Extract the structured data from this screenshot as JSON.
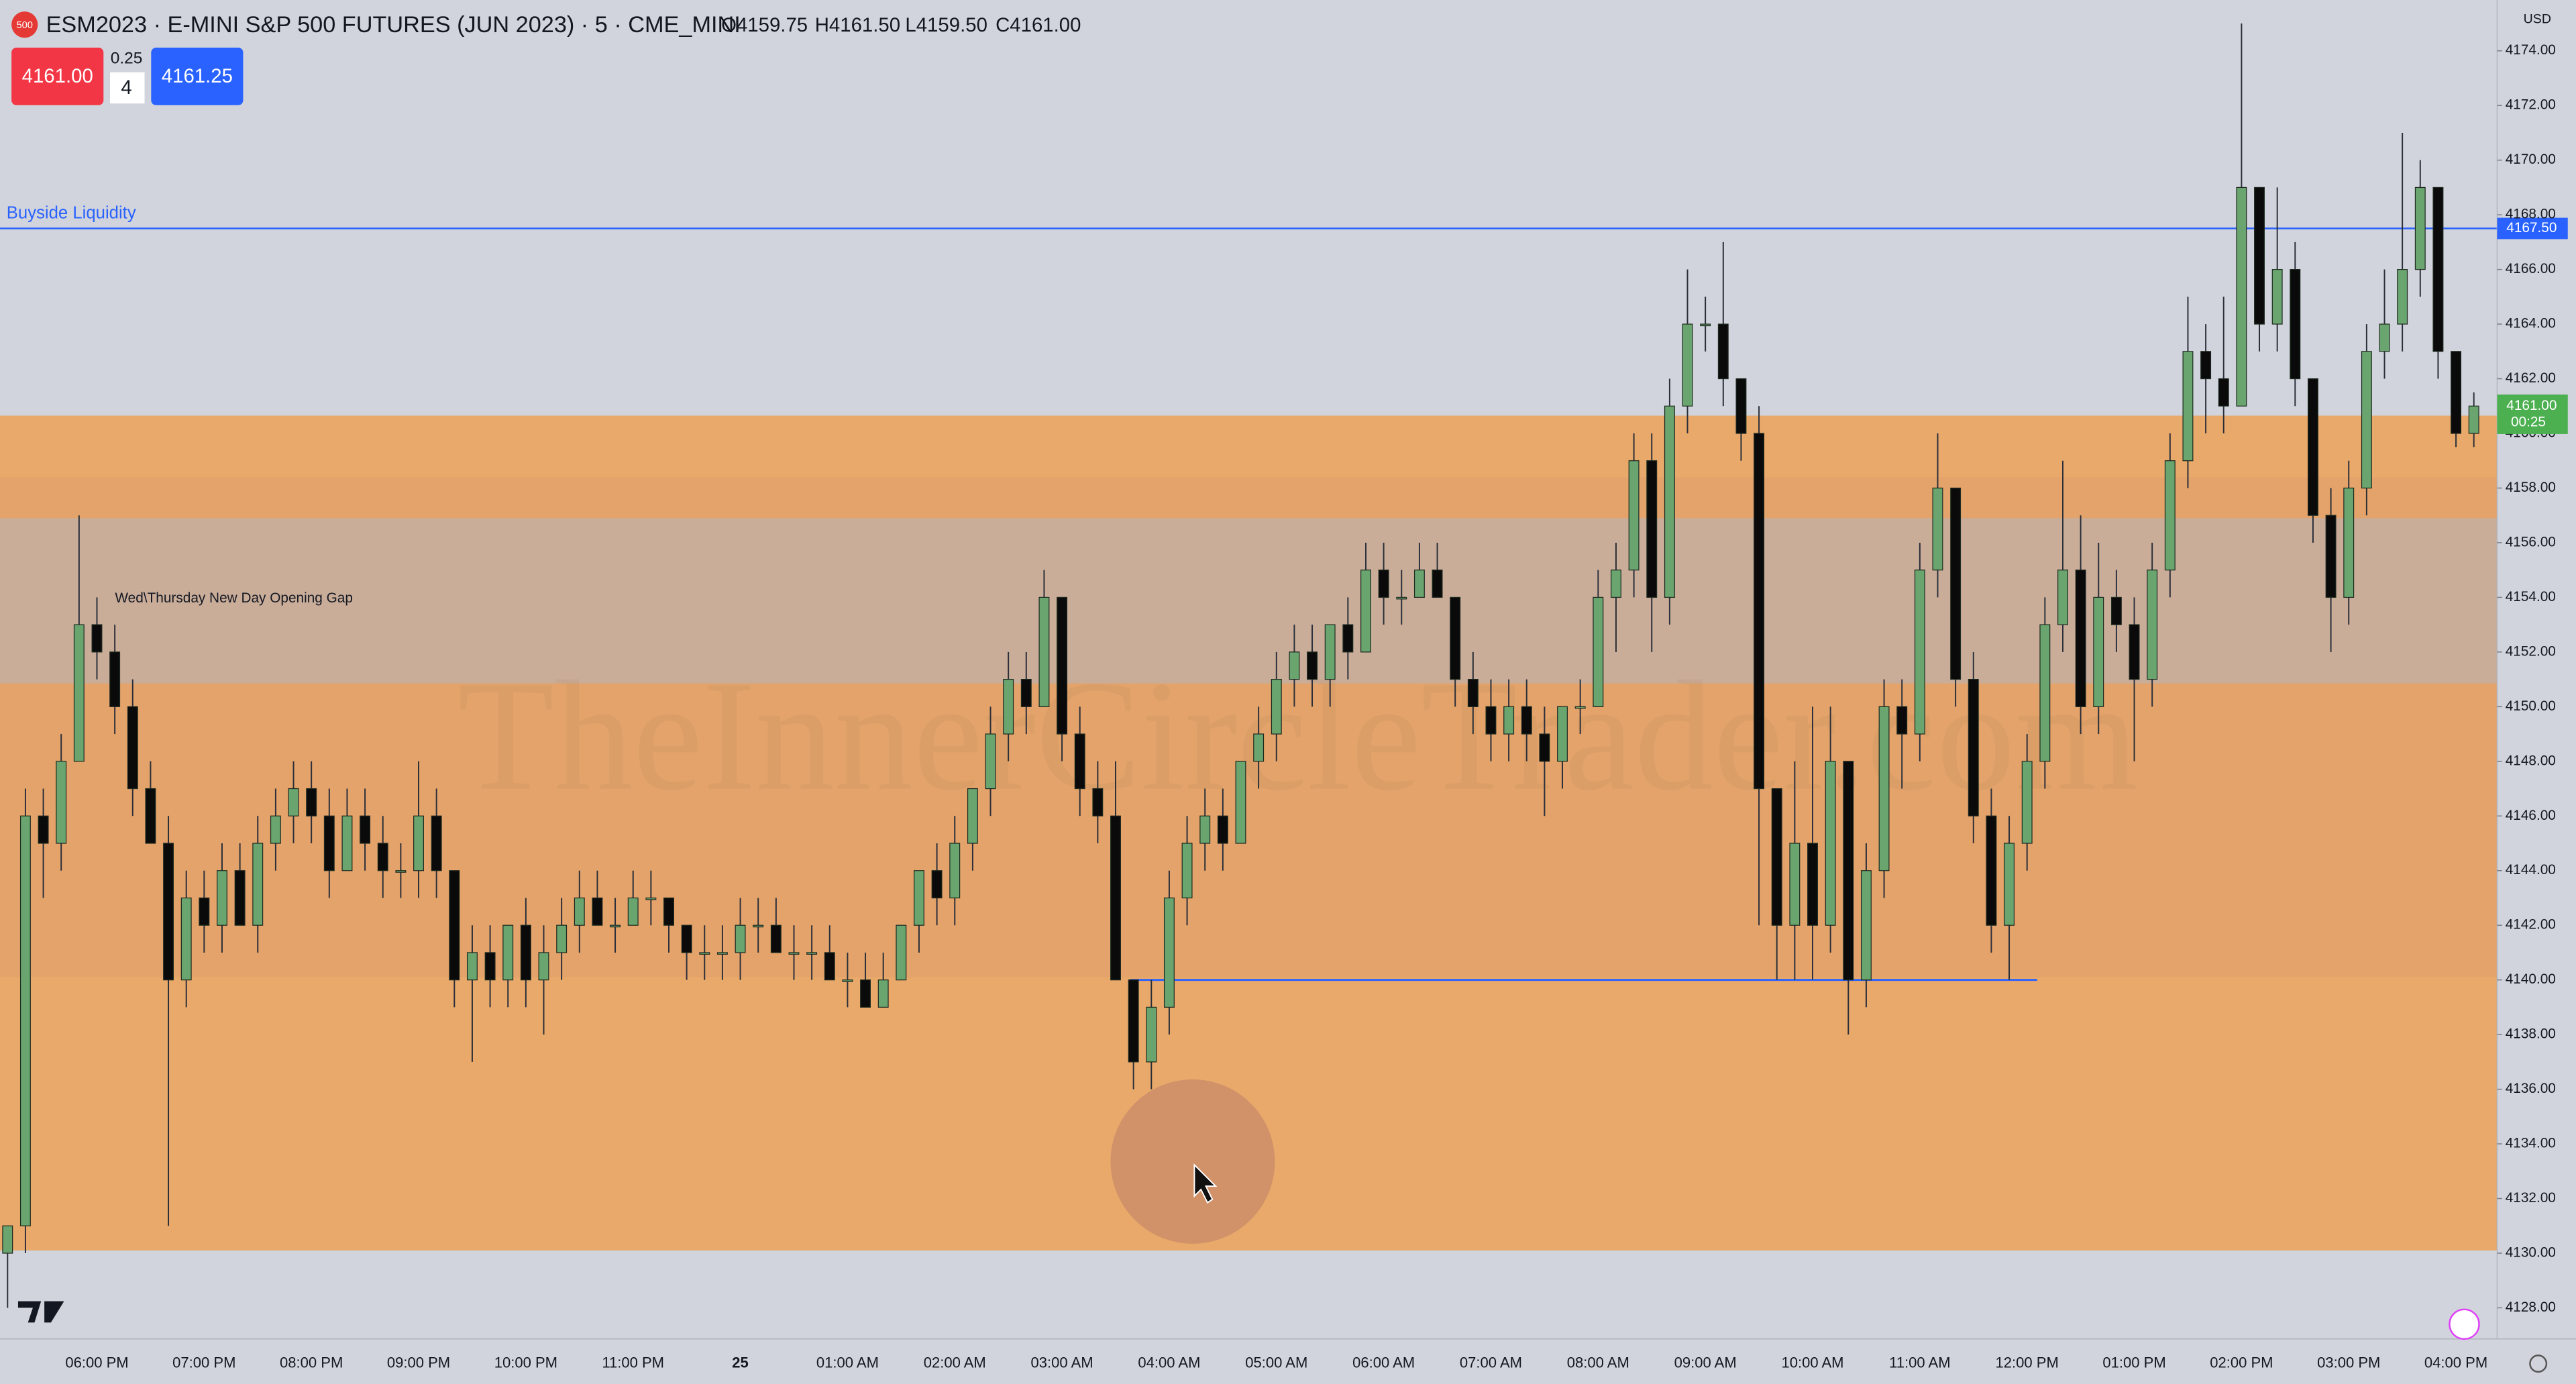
{
  "header": {
    "icon": "500",
    "symbol": "ESM2023 · E-MINI S&P 500 FUTURES (JUN 2023) · 5 · CME_MINI",
    "open": "O4159.75",
    "high": "H4161.50",
    "low": "L4159.50",
    "close": "C4161.00",
    "sell": "4161.00",
    "tick": "0.25",
    "qty": "4",
    "buy": "4161.25",
    "currency": "USD"
  },
  "chart_data": {
    "type": "candlestick",
    "watermark": "TheInnerCircleTrader.com",
    "up_color": "#6aa56f",
    "down_color": "#0a0a0a",
    "ylim": [
      4126.86,
      4175.86
    ],
    "yticks": [
      {
        "value": 4128,
        "label": "4128.00"
      },
      {
        "value": 4130,
        "label": "4130.00"
      },
      {
        "value": 4132,
        "label": "4132.00"
      },
      {
        "value": 4134,
        "label": "4134.00"
      },
      {
        "value": 4136,
        "label": "4136.00"
      },
      {
        "value": 4138,
        "label": "4138.00"
      },
      {
        "value": 4140,
        "label": "4140.00"
      },
      {
        "value": 4142,
        "label": "4142.00"
      },
      {
        "value": 4144,
        "label": "4144.00"
      },
      {
        "value": 4146,
        "label": "4146.00"
      },
      {
        "value": 4148,
        "label": "4148.00"
      },
      {
        "value": 4150,
        "label": "4150.00"
      },
      {
        "value": 4152,
        "label": "4152.00"
      },
      {
        "value": 4154,
        "label": "4154.00"
      },
      {
        "value": 4156,
        "label": "4156.00"
      },
      {
        "value": 4158,
        "label": "4158.00"
      },
      {
        "value": 4160,
        "label": "4160.00"
      },
      {
        "value": 4162,
        "label": "4162.00"
      },
      {
        "value": 4164,
        "label": "4164.00"
      },
      {
        "value": 4166,
        "label": "4166.00"
      },
      {
        "value": 4168,
        "label": "4168.00"
      },
      {
        "value": 4170,
        "label": "4170.00"
      },
      {
        "value": 4172,
        "label": "4172.00"
      },
      {
        "value": 4174,
        "label": "4174.00"
      }
    ],
    "x_labels": [
      "06:00 PM",
      "07:00 PM",
      "08:00 PM",
      "09:00 PM",
      "10:00 PM",
      "11:00 PM",
      "25",
      "01:00 AM",
      "02:00 AM",
      "03:00 AM",
      "04:00 AM",
      "05:00 AM",
      "06:00 AM",
      "07:00 AM",
      "08:00 AM",
      "09:00 AM",
      "10:00 AM",
      "11:00 AM",
      "12:00 PM",
      "01:00 PM",
      "02:00 PM",
      "03:00 PM",
      "04:00 PM"
    ],
    "zones": [
      {
        "top": 4160.65,
        "bottom": 4130.1,
        "color": "#e8a96a"
      },
      {
        "top": 4158.4,
        "bottom": 4140.1,
        "color": "#e3a36a"
      },
      {
        "top": 4156.9,
        "bottom": 4150.85,
        "color": "#c9ad99",
        "label": "Wed\\Thursday New Day Opening Gap"
      }
    ],
    "lines": [
      {
        "value": 4167.5,
        "label": "Buyside Liquidity",
        "price_label": "4167.50",
        "color": "#2962ff"
      },
      {
        "value": 4140,
        "color": "#2962ff"
      }
    ],
    "last_price": {
      "value": 4161,
      "label": "4161.00",
      "timer": "00:25",
      "color": "#4caf50"
    },
    "candles": [
      [
        4130,
        4131,
        4128,
        4131
      ],
      [
        4131,
        4147,
        4130,
        4146
      ],
      [
        4146,
        4147,
        4143,
        4145
      ],
      [
        4145,
        4149,
        4144,
        4148
      ],
      [
        4148,
        4157,
        4148,
        4153
      ],
      [
        4153,
        4154,
        4151,
        4152
      ],
      [
        4152,
        4153,
        4149,
        4150
      ],
      [
        4150,
        4151,
        4146,
        4147
      ],
      [
        4147,
        4148,
        4145,
        4145
      ],
      [
        4145,
        4146,
        4131,
        4140
      ],
      [
        4140,
        4144,
        4139,
        4143
      ],
      [
        4143,
        4144,
        4141,
        4142
      ],
      [
        4142,
        4145,
        4141,
        4144
      ],
      [
        4144,
        4145,
        4142,
        4142
      ],
      [
        4142,
        4146,
        4141,
        4145
      ],
      [
        4145,
        4147,
        4144,
        4146
      ],
      [
        4146,
        4148,
        4145,
        4147
      ],
      [
        4147,
        4148,
        4145,
        4146
      ],
      [
        4146,
        4147,
        4143,
        4144
      ],
      [
        4144,
        4147,
        4144,
        4146
      ],
      [
        4146,
        4147,
        4144,
        4145
      ],
      [
        4145,
        4146,
        4143,
        4144
      ],
      [
        4144,
        4145,
        4143,
        4144
      ],
      [
        4144,
        4148,
        4143,
        4146
      ],
      [
        4146,
        4147,
        4143,
        4144
      ],
      [
        4144,
        4144,
        4139,
        4140
      ],
      [
        4140,
        4142,
        4137,
        4141
      ],
      [
        4141,
        4142,
        4139,
        4140
      ],
      [
        4140,
        4142,
        4139,
        4142
      ],
      [
        4142,
        4143,
        4139,
        4140
      ],
      [
        4140,
        4142,
        4138,
        4141
      ],
      [
        4141,
        4143,
        4140,
        4142
      ],
      [
        4142,
        4144,
        4141,
        4143
      ],
      [
        4143,
        4144,
        4142,
        4142
      ],
      [
        4142,
        4143,
        4141,
        4142
      ],
      [
        4142,
        4144,
        4142,
        4143
      ],
      [
        4143,
        4144,
        4142,
        4143
      ],
      [
        4143,
        4143,
        4141,
        4142
      ],
      [
        4142,
        4142,
        4140,
        4141
      ],
      [
        4141,
        4142,
        4140,
        4141
      ],
      [
        4141,
        4142,
        4140,
        4141
      ],
      [
        4141,
        4143,
        4140,
        4142
      ],
      [
        4142,
        4143,
        4141,
        4142
      ],
      [
        4142,
        4143,
        4141,
        4141
      ],
      [
        4141,
        4142,
        4140,
        4141
      ],
      [
        4141,
        4142,
        4140,
        4141
      ],
      [
        4141,
        4142,
        4140,
        4140
      ],
      [
        4140,
        4141,
        4139,
        4140
      ],
      [
        4140,
        4141,
        4139,
        4139
      ],
      [
        4139,
        4141,
        4139,
        4140
      ],
      [
        4140,
        4142,
        4140,
        4142
      ],
      [
        4142,
        4144,
        4141,
        4144
      ],
      [
        4144,
        4145,
        4142,
        4143
      ],
      [
        4143,
        4146,
        4142,
        4145
      ],
      [
        4145,
        4147,
        4144,
        4147
      ],
      [
        4147,
        4150,
        4146,
        4149
      ],
      [
        4149,
        4152,
        4148,
        4151
      ],
      [
        4151,
        4152,
        4149,
        4150
      ],
      [
        4150,
        4155,
        4150,
        4154
      ],
      [
        4154,
        4154,
        4148,
        4149
      ],
      [
        4149,
        4150,
        4146,
        4147
      ],
      [
        4147,
        4148,
        4145,
        4146
      ],
      [
        4146,
        4148,
        4140,
        4140
      ],
      [
        4140,
        4140,
        4136,
        4137
      ],
      [
        4137,
        4140,
        4136,
        4139
      ],
      [
        4139,
        4144,
        4138,
        4143
      ],
      [
        4143,
        4146,
        4142,
        4145
      ],
      [
        4145,
        4147,
        4144,
        4146
      ],
      [
        4146,
        4147,
        4144,
        4145
      ],
      [
        4145,
        4148,
        4145,
        4148
      ],
      [
        4148,
        4150,
        4147,
        4149
      ],
      [
        4149,
        4152,
        4148,
        4151
      ],
      [
        4151,
        4153,
        4150,
        4152
      ],
      [
        4152,
        4153,
        4150,
        4151
      ],
      [
        4151,
        4153,
        4150,
        4153
      ],
      [
        4153,
        4154,
        4151,
        4152
      ],
      [
        4152,
        4156,
        4152,
        4155
      ],
      [
        4155,
        4156,
        4153,
        4154
      ],
      [
        4154,
        4155,
        4153,
        4154
      ],
      [
        4154,
        4156,
        4154,
        4155
      ],
      [
        4155,
        4156,
        4154,
        4154
      ],
      [
        4154,
        4154,
        4150,
        4151
      ],
      [
        4151,
        4152,
        4149,
        4150
      ],
      [
        4150,
        4151,
        4148,
        4149
      ],
      [
        4149,
        4151,
        4148,
        4150
      ],
      [
        4150,
        4151,
        4148,
        4149
      ],
      [
        4149,
        4150,
        4146,
        4148
      ],
      [
        4148,
        4150,
        4147,
        4150
      ],
      [
        4150,
        4151,
        4149,
        4150
      ],
      [
        4150,
        4155,
        4150,
        4154
      ],
      [
        4154,
        4156,
        4152,
        4155
      ],
      [
        4155,
        4160,
        4154,
        4159
      ],
      [
        4159,
        4160,
        4152,
        4154
      ],
      [
        4154,
        4162,
        4153,
        4161
      ],
      [
        4161,
        4166,
        4160,
        4164
      ],
      [
        4164,
        4165,
        4163,
        4164
      ],
      [
        4164,
        4167,
        4161,
        4162
      ],
      [
        4162,
        4162,
        4159,
        4160
      ],
      [
        4160,
        4161,
        4142,
        4147
      ],
      [
        4147,
        4147,
        4140,
        4142
      ],
      [
        4142,
        4148,
        4140,
        4145
      ],
      [
        4145,
        4150,
        4140,
        4142
      ],
      [
        4142,
        4150,
        4141,
        4148
      ],
      [
        4148,
        4148,
        4138,
        4140
      ],
      [
        4140,
        4145,
        4139,
        4144
      ],
      [
        4144,
        4151,
        4143,
        4150
      ],
      [
        4150,
        4151,
        4147,
        4149
      ],
      [
        4149,
        4156,
        4148,
        4155
      ],
      [
        4155,
        4160,
        4154,
        4158
      ],
      [
        4158,
        4158,
        4150,
        4151
      ],
      [
        4151,
        4152,
        4145,
        4146
      ],
      [
        4146,
        4147,
        4141,
        4142
      ],
      [
        4142,
        4146,
        4140,
        4145
      ],
      [
        4145,
        4149,
        4144,
        4148
      ],
      [
        4148,
        4154,
        4147,
        4153
      ],
      [
        4153,
        4159,
        4152,
        4155
      ],
      [
        4155,
        4157,
        4149,
        4150
      ],
      [
        4150,
        4156,
        4149,
        4154
      ],
      [
        4154,
        4155,
        4152,
        4153
      ],
      [
        4153,
        4154,
        4148,
        4151
      ],
      [
        4151,
        4156,
        4150,
        4155
      ],
      [
        4155,
        4160,
        4154,
        4159
      ],
      [
        4159,
        4165,
        4158,
        4163
      ],
      [
        4163,
        4164,
        4160,
        4162
      ],
      [
        4162,
        4165,
        4160,
        4161
      ],
      [
        4161,
        4175,
        4161,
        4169
      ],
      [
        4169,
        4169,
        4163,
        4164
      ],
      [
        4164,
        4169,
        4163,
        4166
      ],
      [
        4166,
        4167,
        4161,
        4162
      ],
      [
        4162,
        4162,
        4156,
        4157
      ],
      [
        4157,
        4158,
        4152,
        4154
      ],
      [
        4154,
        4159,
        4153,
        4158
      ],
      [
        4158,
        4164,
        4157,
        4163
      ],
      [
        4163,
        4166,
        4162,
        4164
      ],
      [
        4164,
        4171,
        4163,
        4166
      ],
      [
        4166,
        4170,
        4165,
        4169
      ],
      [
        4169,
        4169,
        4162,
        4163
      ],
      [
        4163,
        4163,
        4159.5,
        4160
      ],
      [
        4160,
        4161.5,
        4159.5,
        4161
      ]
    ]
  }
}
